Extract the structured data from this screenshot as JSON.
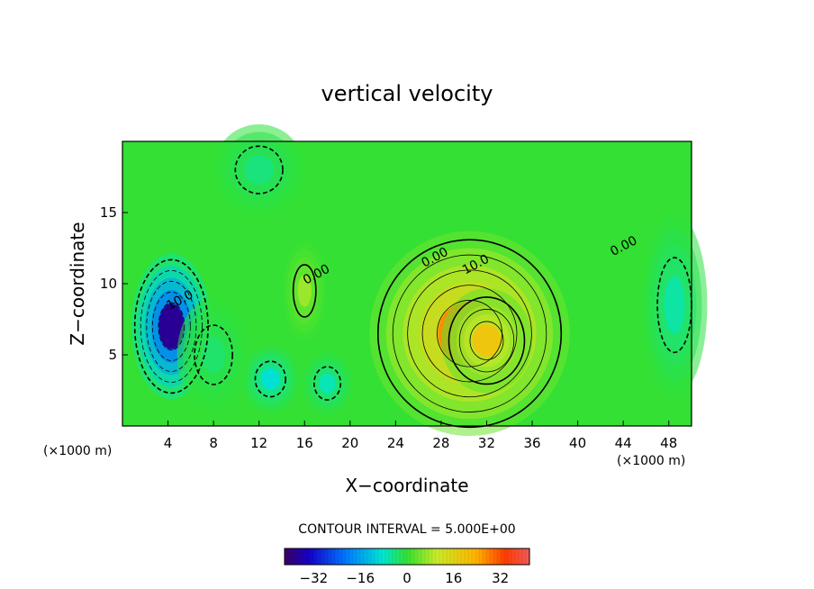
{
  "chart_data": {
    "type": "heatmap",
    "title": "vertical velocity",
    "xlabel": "X−coordinate",
    "ylabel": "Z−coordinate",
    "x_unit": "(×1000 m)",
    "xlim": [
      0,
      50
    ],
    "ylim": [
      0,
      20
    ],
    "x_ticks": [
      "4",
      "8",
      "12",
      "16",
      "20",
      "24",
      "28",
      "32",
      "36",
      "40",
      "44",
      "48"
    ],
    "y_ticks": [
      "5",
      "10",
      "15"
    ],
    "contour_interval_text": "CONTOUR INTERVAL = 5.000E+00",
    "contour_labels": [
      {
        "text": "0.00",
        "x": 17.2,
        "z": 10.4
      },
      {
        "text": "0.00",
        "x": 27.6,
        "z": 11.6
      },
      {
        "text": "10.0",
        "x": 31.2,
        "z": 11.1
      },
      {
        "text": "0.00",
        "x": 44.2,
        "z": 12.4
      },
      {
        "text": "10.0",
        "x": 5.2,
        "z": 8.6
      }
    ],
    "colorbar": {
      "range": [
        -42,
        42
      ],
      "tick_labels": [
        "−32",
        "−16",
        "0",
        "16",
        "32"
      ],
      "tick_values": [
        -32,
        -16,
        0,
        16,
        32
      ]
    },
    "features": [
      {
        "kind": "min",
        "x": 4.3,
        "z": 7.0,
        "value": -38
      },
      {
        "kind": "min",
        "x": 13.0,
        "z": 3.3,
        "value": -9
      },
      {
        "kind": "max",
        "x": 30.5,
        "z": 6.5,
        "value": 27
      },
      {
        "kind": "max",
        "x": 32.0,
        "z": 6.0,
        "value": 19
      },
      {
        "kind": "min",
        "x": 18.0,
        "z": 3.0,
        "value": -7
      },
      {
        "kind": "min",
        "x": 48.5,
        "z": 8.5,
        "value": -6
      },
      {
        "kind": "max",
        "x": 16.0,
        "z": 9.5,
        "value": 7
      },
      {
        "kind": "min",
        "x": 12.0,
        "z": 18.0,
        "value": -4
      },
      {
        "kind": "min",
        "x": 8.0,
        "z": 5.0,
        "value": -3
      }
    ],
    "grid": false
  }
}
